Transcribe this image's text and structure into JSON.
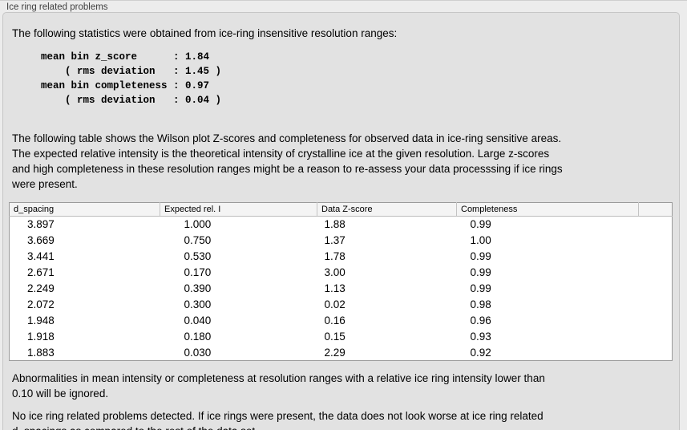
{
  "panel": {
    "title": "Ice ring related problems"
  },
  "intro_text": "The following statistics were obtained from ice-ring insensitive resolution ranges:",
  "stats_block": "mean bin z_score      : 1.84\n    ( rms deviation   : 1.45 )\nmean bin completeness : 0.97\n    ( rms deviation   : 0.04 )",
  "stats_values": {
    "mean_bin_z_score": "1.84",
    "z_score_rms_deviation": "1.45",
    "mean_bin_completeness": "0.97",
    "completeness_rms_deviation": "0.04"
  },
  "description": {
    "lines": [
      "The following table shows the Wilson plot Z-scores and completeness for observed data in ice-ring sensitive areas.",
      "The expected relative intensity is the theoretical intensity of crystalline ice at the given resolution. Large z-scores",
      "and high completeness in these resolution ranges might be a reason to re-assess your data processsing if ice rings",
      "were present."
    ]
  },
  "table": {
    "columns": [
      "d_spacing",
      "Expected rel. I",
      "Data Z-score",
      "Completeness"
    ],
    "rows": [
      [
        "3.897",
        "1.000",
        "1.88",
        "0.99"
      ],
      [
        "3.669",
        "0.750",
        "1.37",
        "1.00"
      ],
      [
        "3.441",
        "0.530",
        "1.78",
        "0.99"
      ],
      [
        "2.671",
        "0.170",
        "3.00",
        "0.99"
      ],
      [
        "2.249",
        "0.390",
        "1.13",
        "0.99"
      ],
      [
        "2.072",
        "0.300",
        "0.02",
        "0.98"
      ],
      [
        "1.948",
        "0.040",
        "0.16",
        "0.96"
      ],
      [
        "1.918",
        "0.180",
        "0.15",
        "0.93"
      ],
      [
        "1.883",
        "0.030",
        "2.29",
        "0.92"
      ]
    ]
  },
  "notes": {
    "ignore_note_lines": [
      "Abnormalities in mean intensity or completeness at resolution ranges with a relative ice ring intensity lower than",
      "0.10 will be ignored."
    ],
    "conclusion_lines": [
      "No ice ring related problems detected. If ice rings were present, the data does not look worse at ice ring related",
      "d_spacings as compared to the rest of the data set."
    ]
  },
  "colors": {
    "window_background": "#ececec",
    "panel_background": "#e2e2e2",
    "panel_border": "#c6c6c6",
    "table_border": "#9a9a9a",
    "table_header_background": "#f4f4f4",
    "text": "#000000"
  }
}
